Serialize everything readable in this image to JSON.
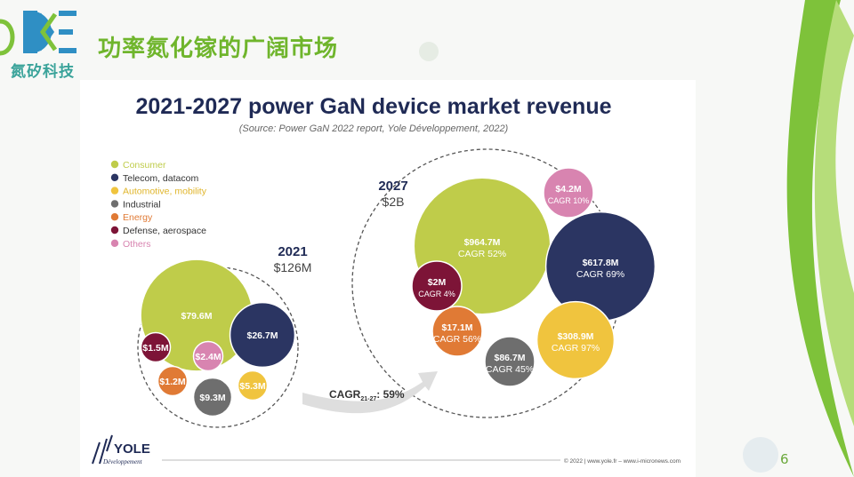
{
  "header": {
    "logo_text": "氮矽科技",
    "page_title": "功率氮化镓的广阔市场",
    "page_number": "6"
  },
  "chart_data": {
    "type": "bubble",
    "title": "2021-2027 power GaN device market revenue",
    "subtitle": "(Source: Power GaN 2022 report, Yole Développement, 2022)",
    "legend": [
      {
        "name": "Consumer",
        "color": "#bfcc4a"
      },
      {
        "name": "Telecom, datacom",
        "color": "#2b3562"
      },
      {
        "name": "Automotive, mobility",
        "color": "#f0c43e"
      },
      {
        "name": "Industrial",
        "color": "#6e6e6e"
      },
      {
        "name": "Energy",
        "color": "#e07a35"
      },
      {
        "name": "Defense, aerospace",
        "color": "#7d1437"
      },
      {
        "name": "Others",
        "color": "#d884b0"
      }
    ],
    "years": [
      {
        "year": "2021",
        "total": "$126M",
        "segments": [
          {
            "name": "Consumer",
            "value": 79.6,
            "label": "$79.6M"
          },
          {
            "name": "Telecom, datacom",
            "value": 26.7,
            "label": "$26.7M"
          },
          {
            "name": "Automotive, mobility",
            "value": 5.3,
            "label": "$5.3M"
          },
          {
            "name": "Industrial",
            "value": 9.3,
            "label": "$9.3M"
          },
          {
            "name": "Energy",
            "value": 1.2,
            "label": "$1.2M"
          },
          {
            "name": "Defense, aerospace",
            "value": 1.5,
            "label": "$1.5M"
          },
          {
            "name": "Others",
            "value": 2.4,
            "label": "$2.4M"
          }
        ]
      },
      {
        "year": "2027",
        "total": "$2B",
        "segments": [
          {
            "name": "Consumer",
            "value": 964.7,
            "label": "$964.7M",
            "cagr": "CAGR 52%"
          },
          {
            "name": "Telecom, datacom",
            "value": 617.8,
            "label": "$617.8M",
            "cagr": "CAGR 69%"
          },
          {
            "name": "Automotive, mobility",
            "value": 308.9,
            "label": "$308.9M",
            "cagr": "CAGR 97%"
          },
          {
            "name": "Industrial",
            "value": 86.7,
            "label": "$86.7M",
            "cagr": "CAGR 45%"
          },
          {
            "name": "Energy",
            "value": 17.1,
            "label": "$17.1M",
            "cagr": "CAGR 56%"
          },
          {
            "name": "Defense, aerospace",
            "value": 2,
            "label": "$2M",
            "cagr": "CAGR 4%"
          },
          {
            "name": "Others",
            "value": 4.2,
            "label": "$4.2M",
            "cagr": "CAGR 10%"
          }
        ]
      }
    ],
    "cagr_arrow": {
      "prefix": "CAGR",
      "subscript": "21-27",
      "suffix": ": 59%"
    }
  },
  "footer": {
    "brand": "YOLE",
    "brand_sub": "Développement",
    "credit": "© 2022 | www.yole.fr – www.i-micronews.com"
  }
}
